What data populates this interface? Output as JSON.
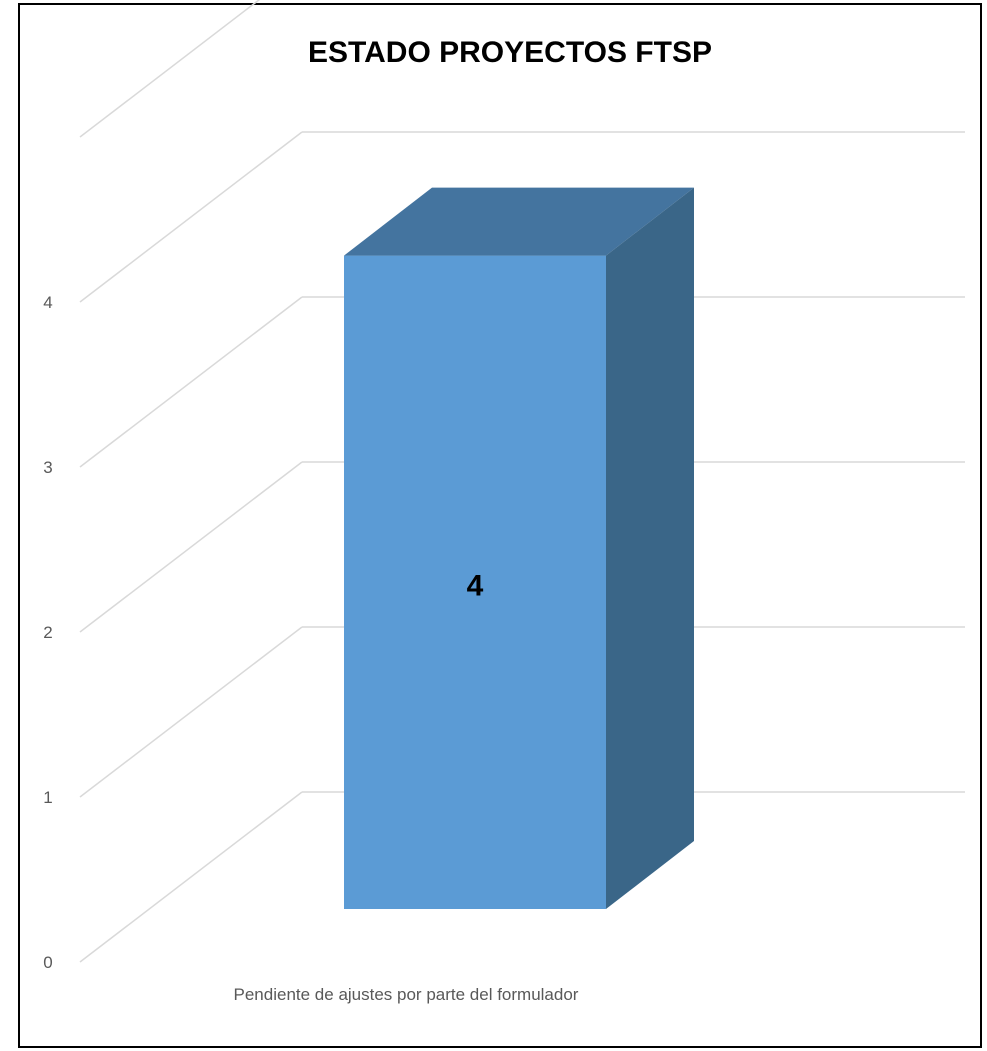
{
  "chart_data": {
    "type": "bar",
    "style": "3d-column",
    "title": "ESTADO PROYECTOS FTSP",
    "xlabel": "",
    "ylabel": "",
    "categories": [
      "Pendiente de ajustes por parte del formulador"
    ],
    "values": [
      4
    ],
    "data_labels": [
      "4"
    ],
    "ylim": [
      0,
      5
    ],
    "yticks": [
      "0",
      "1",
      "2",
      "3",
      "4"
    ],
    "grid": true,
    "legend": "none",
    "colors": {
      "bar_front": "#5B9BD5",
      "bar_top": "#44749F",
      "bar_side": "#3A6688",
      "grid": "#D9D9D9",
      "tick_text": "#595959"
    }
  }
}
